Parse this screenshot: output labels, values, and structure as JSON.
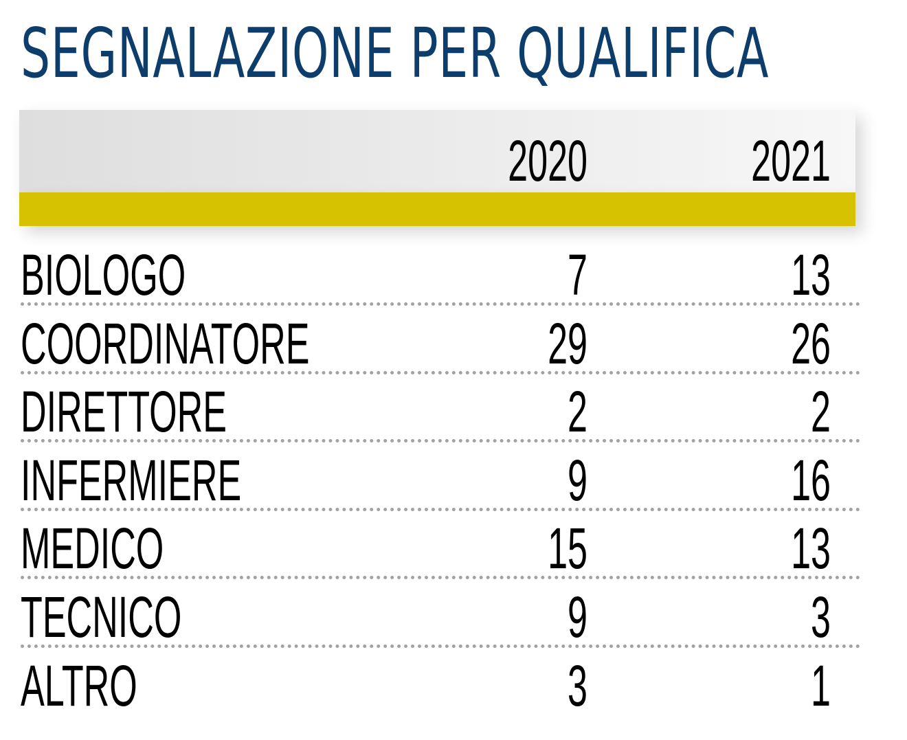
{
  "chart_data": {
    "type": "table",
    "title": "SEGNALAZIONE PER QUALIFICA",
    "columns": [
      "2020",
      "2021"
    ],
    "rows": [
      {
        "label": "BIOLOGO",
        "values": [
          7,
          13
        ]
      },
      {
        "label": "COORDINATORE",
        "values": [
          29,
          26
        ]
      },
      {
        "label": "DIRETTORE",
        "values": [
          2,
          2
        ]
      },
      {
        "label": "INFERMIERE",
        "values": [
          9,
          16
        ]
      },
      {
        "label": "MEDICO",
        "values": [
          15,
          13
        ]
      },
      {
        "label": "TECNICO",
        "values": [
          9,
          3
        ]
      },
      {
        "label": "ALTRO",
        "values": [
          3,
          1
        ]
      }
    ]
  },
  "colors": {
    "title": "#0d3d6b",
    "accent_bar": "#d6c200",
    "text": "#000000",
    "divider": "#a2a2a2"
  }
}
